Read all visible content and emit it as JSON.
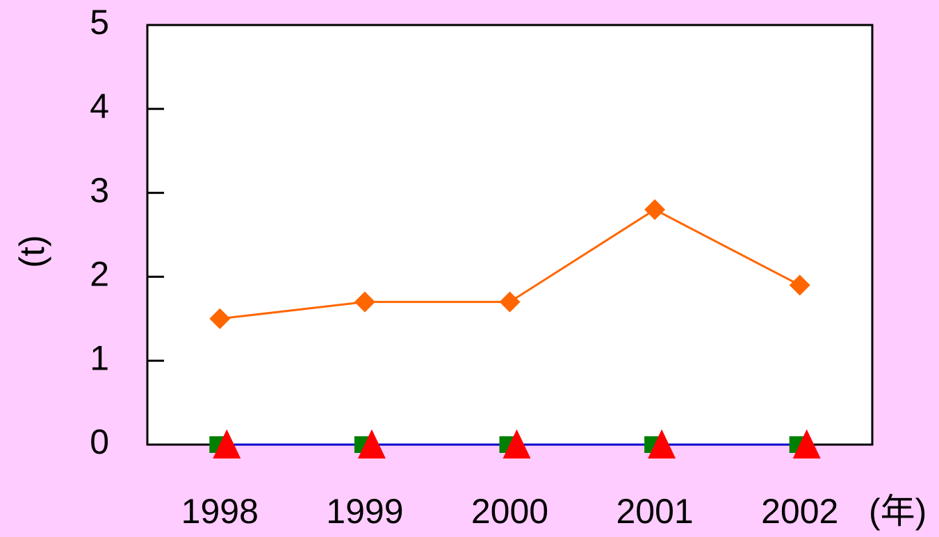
{
  "chart_data": {
    "type": "line",
    "y_label": "(t)",
    "x_unit": "(年)",
    "categories": [
      "1998",
      "1999",
      "2000",
      "2001",
      "2002"
    ],
    "series": [
      {
        "color": "#ff6600",
        "line_color": "#ff6600",
        "marker": "diamond",
        "values": [
          1.5,
          1.7,
          1.7,
          2.8,
          1.9
        ]
      },
      {
        "color": "#008000",
        "line_color": "#0000cc",
        "marker": "square",
        "values": [
          0,
          0,
          0,
          0,
          0
        ]
      },
      {
        "color": "#ff0000",
        "line_color": null,
        "marker": "triangle",
        "values": [
          0,
          0,
          0,
          0,
          0
        ]
      }
    ],
    "ylim": [
      0,
      5
    ],
    "yticks": [
      0,
      1,
      2,
      3,
      4,
      5
    ],
    "grid": false
  }
}
